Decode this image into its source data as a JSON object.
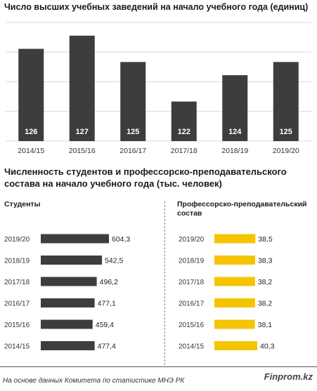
{
  "chart_data": [
    {
      "type": "bar",
      "title": "Число высших учебных заведений на начало учебного года (единиц)",
      "categories": [
        "2014/15",
        "2015/16",
        "2016/17",
        "2017/18",
        "2018/19",
        "2019/20"
      ],
      "values": [
        126,
        127,
        125,
        122,
        124,
        125
      ],
      "value_labels": [
        "126",
        "127",
        "125",
        "122",
        "124",
        "125"
      ],
      "bar_color": "#3d3d3d",
      "grid": true
    },
    {
      "type": "bar",
      "orientation": "horizontal",
      "title": "Численность студентов и профессорско-преподавательского состава на начало учебного года (тыс. человек)",
      "categories": [
        "2019/20",
        "2018/19",
        "2017/18",
        "2016/17",
        "2015/16",
        "2014/15"
      ],
      "series": [
        {
          "name": "Студенты",
          "values": [
            604.3,
            542.5,
            496.2,
            477.1,
            459.4,
            477.4
          ],
          "value_labels": [
            "604,3",
            "542,5",
            "496,2",
            "477,1",
            "459,4",
            "477,4"
          ],
          "color": "#3d3d3d"
        },
        {
          "name": "Профессорско-преподавательский состав",
          "values": [
            38.5,
            38.3,
            38.2,
            38.2,
            38.1,
            40.3
          ],
          "value_labels": [
            "38,5",
            "38,3",
            "38,2",
            "38,2",
            "38,1",
            "40,3"
          ],
          "color": "#f5c400"
        }
      ]
    }
  ],
  "footer": {
    "source": "На основе данных Комитета по статистике МНЭ РК",
    "brand": "Finprom.kz"
  }
}
